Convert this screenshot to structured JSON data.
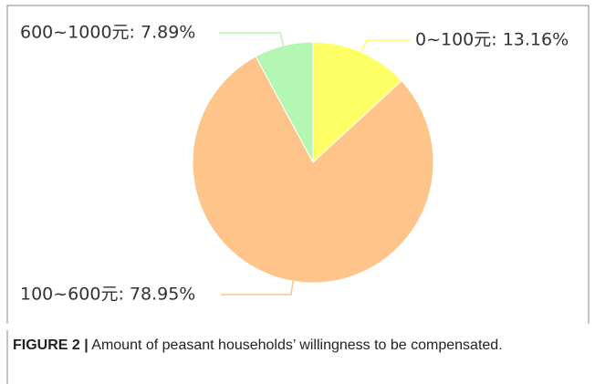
{
  "chart_data": {
    "type": "pie",
    "labels": [
      "0~100元: 13.16%",
      "100~600元: 78.95%",
      "600~1000元: 7.89%"
    ],
    "values": [
      13.16,
      78.95,
      7.89
    ],
    "colors": [
      "#ffff66",
      "#ffc48a",
      "#b3f7b3"
    ]
  },
  "caption": {
    "label": "FIGURE 2 |",
    "text": "Amount of peasant households’ willingness to be compensated."
  }
}
